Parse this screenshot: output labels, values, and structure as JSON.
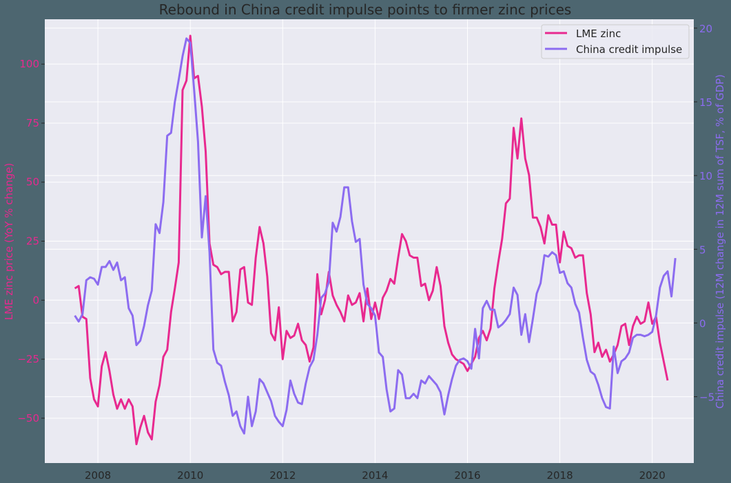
{
  "chart_data": {
    "type": "line",
    "title": "Rebound in China credit impulse points to firmer zinc prices",
    "xlabel": "",
    "ylabel_left": "LME zinc price (YoY % change)",
    "ylabel_right": "China credit impulse (12M change in 12M sum of TSF, % of GDP)",
    "x_ticks": [
      "2008",
      "2010",
      "2012",
      "2014",
      "2016",
      "2018",
      "2020"
    ],
    "y_left_ticks": [
      "100",
      "75",
      "50",
      "25",
      "0",
      "−25",
      "−50"
    ],
    "y_right_ticks": [
      "20",
      "15",
      "10",
      "5",
      "0",
      "−5"
    ],
    "ylim_left": [
      -69,
      119
    ],
    "ylim_right": [
      -9.5,
      20.6
    ],
    "xlim": [
      2006.85,
      2020.9
    ],
    "grid": true,
    "legend_position": "upper right",
    "x_start": 2007.5,
    "x_step_months": 1,
    "series": [
      {
        "name": "LME zinc",
        "axis": "left",
        "color": "#e8298f",
        "values": [
          5,
          6,
          -7,
          -8,
          -33,
          -42,
          -45,
          -28,
          -22,
          -30,
          -40,
          -46,
          -42,
          -46,
          -42,
          -45,
          -61,
          -54,
          -49,
          -56,
          -59,
          -43,
          -36,
          -24,
          -21,
          -5,
          5,
          16,
          89,
          93,
          112,
          94,
          95,
          82,
          63,
          24,
          15,
          14,
          11,
          12,
          12,
          -9,
          -5,
          13,
          14,
          -1,
          -2,
          18,
          31,
          24,
          10,
          -14,
          -17,
          -3,
          -25,
          -13,
          -16,
          -15,
          -10,
          -17,
          -19,
          -26,
          -20,
          11,
          -6,
          0,
          12,
          2,
          -2,
          -5,
          -9,
          2,
          -2,
          -1,
          3,
          -9,
          5,
          -8,
          -1,
          -8,
          1,
          4,
          9,
          7,
          18,
          28,
          25,
          19,
          18,
          18,
          6,
          7,
          0,
          4,
          14,
          6,
          -11,
          -18,
          -23,
          -25,
          -26,
          -27,
          -30,
          -27,
          -24,
          -16,
          -13,
          -17,
          -12,
          5,
          16,
          26,
          41,
          43,
          73,
          60,
          77,
          60,
          53,
          35,
          35,
          31,
          24,
          36,
          32,
          32,
          16,
          29,
          23,
          22,
          18,
          19,
          19,
          3,
          -6,
          -22,
          -18,
          -24,
          -21,
          -26,
          -23,
          -19,
          -11,
          -10,
          -19,
          -11,
          -7,
          -10,
          -9,
          -1,
          -10,
          -7,
          -18,
          -26,
          -34
        ]
      },
      {
        "name": "China credit impulse",
        "axis": "right",
        "color": "#8c6cf0",
        "values": [
          0.5,
          0.1,
          0.6,
          2.9,
          3.1,
          3.0,
          2.6,
          3.8,
          3.8,
          4.2,
          3.6,
          4.1,
          2.9,
          3.1,
          1.0,
          0.5,
          -1.5,
          -1.2,
          -0.2,
          1.2,
          2.2,
          6.7,
          6.1,
          8.2,
          12.7,
          12.9,
          15.0,
          16.5,
          18.1,
          19.3,
          19.0,
          15.8,
          12.3,
          5.8,
          8.6,
          4.8,
          -1.8,
          -2.7,
          -2.9,
          -4.0,
          -4.9,
          -6.3,
          -6.0,
          -7.0,
          -7.5,
          -5.0,
          -7.0,
          -6.0,
          -3.8,
          -4.1,
          -4.7,
          -5.3,
          -6.3,
          -6.7,
          -7.0,
          -5.9,
          -3.9,
          -4.8,
          -5.4,
          -5.5,
          -4.1,
          -3.0,
          -2.5,
          -0.8,
          1.7,
          2.0,
          2.8,
          6.8,
          6.2,
          7.2,
          9.2,
          9.2,
          6.9,
          5.5,
          5.7,
          2.6,
          1.3,
          1.0,
          0.5,
          -2.0,
          -2.3,
          -4.5,
          -6.0,
          -5.8,
          -3.2,
          -3.5,
          -5.1,
          -5.1,
          -4.8,
          -5.1,
          -3.9,
          -4.1,
          -3.6,
          -3.9,
          -4.2,
          -4.7,
          -6.2,
          -4.9,
          -3.8,
          -2.9,
          -2.5,
          -2.4,
          -2.6,
          -3.1,
          -0.4,
          -2.4,
          1.0,
          1.5,
          0.9,
          0.9,
          -0.3,
          -0.1,
          0.2,
          0.6,
          2.4,
          1.9,
          -0.8,
          0.6,
          -1.3,
          0.3,
          2.0,
          2.7,
          4.6,
          4.5,
          4.8,
          4.6,
          3.4,
          3.5,
          2.7,
          2.4,
          1.3,
          0.7,
          -1.0,
          -2.5,
          -3.3,
          -3.5,
          -4.2,
          -5.1,
          -5.7,
          -5.8,
          -1.6,
          -3.4,
          -2.6,
          -2.4,
          -2.0,
          -1.0,
          -0.8,
          -0.8,
          -0.9,
          -0.8,
          -0.6,
          0.5,
          2.4,
          3.2,
          3.5,
          1.8,
          4.4
        ]
      }
    ]
  }
}
